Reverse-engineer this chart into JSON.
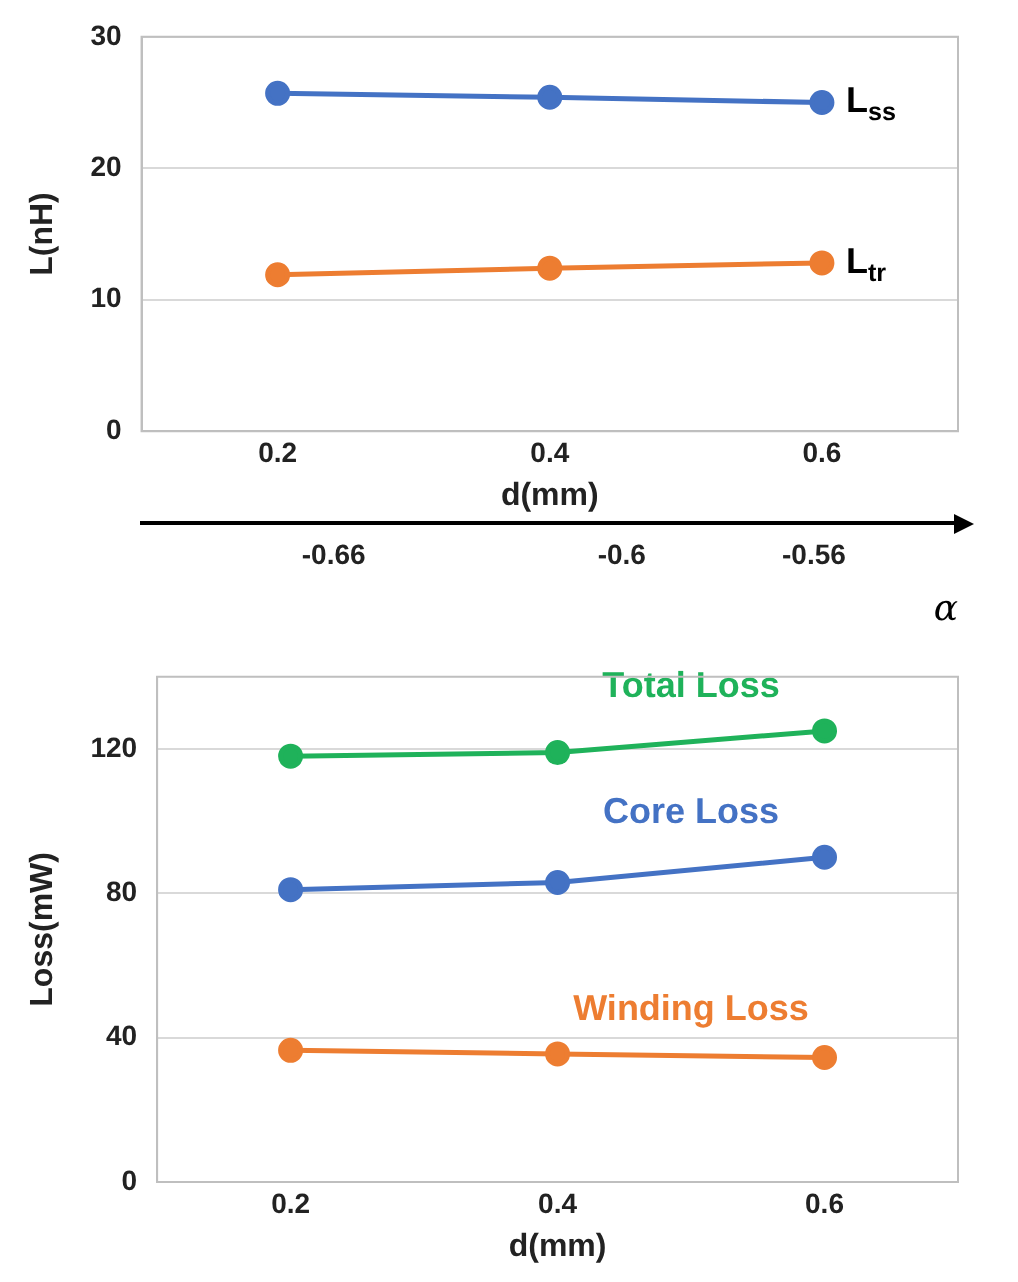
{
  "chart_data": [
    {
      "type": "line",
      "xlabel": "d(mm)",
      "ylabel": "L(nH)",
      "x": [
        0.2,
        0.4,
        0.6
      ],
      "xlim": [
        0.1,
        0.7
      ],
      "xticks": [
        0.2,
        0.4,
        0.6
      ],
      "ylim": [
        0,
        30
      ],
      "yticks": [
        0,
        10,
        20,
        30
      ],
      "x2label": "α",
      "x2lim": [
        -0.7,
        -0.53
      ],
      "x2ticks": [
        -0.66,
        -0.6,
        -0.56
      ],
      "grid": "y",
      "marker": "circle",
      "legend": false,
      "series": [
        {
          "name": "L$_{ss}$",
          "color": "#4472c4",
          "values": [
            25.7,
            25.4,
            25.0
          ]
        },
        {
          "name": "L$_{tr}$",
          "color": "#ed7d31",
          "values": [
            11.9,
            12.4,
            12.8
          ]
        }
      ]
    },
    {
      "type": "line",
      "xlabel": "d(mm)",
      "ylabel": "Loss(mW)",
      "x": [
        0.2,
        0.4,
        0.6
      ],
      "xlim": [
        0.1,
        0.7
      ],
      "xticks": [
        0.2,
        0.4,
        0.6
      ],
      "ylim": [
        0,
        140
      ],
      "yticks": [
        0,
        40,
        80,
        120
      ],
      "grid": "y",
      "marker": "circle",
      "legend": false,
      "series": [
        {
          "name": "Total Loss",
          "color": "#1fb25a",
          "values": [
            118,
            119,
            125
          ]
        },
        {
          "name": "Core Loss",
          "color": "#4472c4",
          "values": [
            81,
            83,
            90
          ]
        },
        {
          "name": "Winding Loss",
          "color": "#ed7d31",
          "values": [
            36.5,
            35.5,
            34.5
          ]
        }
      ]
    }
  ]
}
